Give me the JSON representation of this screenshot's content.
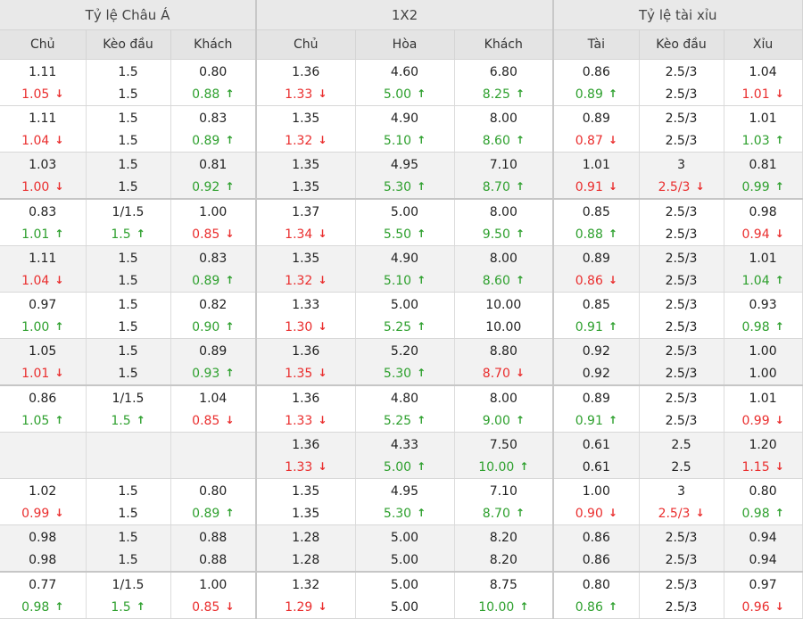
{
  "headers": {
    "groups": [
      "Tỷ lệ Châu Á",
      "1X2",
      "Tỷ lệ tài xỉu"
    ],
    "columns": [
      "Chủ",
      "Kèo đầu",
      "Khách",
      "Chủ",
      "Hòa",
      "Khách",
      "Tài",
      "Kèo đầu",
      "Xỉu"
    ]
  },
  "colors": {
    "up": "#2ea02e",
    "down": "#ea2e2e",
    "header_bg": "#e9e9e9",
    "shade_bg": "#f2f2f2"
  },
  "icons": {
    "up": "arrow-up-icon",
    "down": "arrow-down-icon"
  },
  "arrows": {
    "up": "↑",
    "down": "↓"
  },
  "rows": [
    {
      "shade": false,
      "thick": false,
      "open": [
        [
          "1.11",
          ""
        ],
        [
          "1.5",
          ""
        ],
        [
          "0.80",
          ""
        ],
        [
          "1.36",
          ""
        ],
        [
          "4.60",
          ""
        ],
        [
          "6.80",
          ""
        ],
        [
          "0.86",
          ""
        ],
        [
          "2.5/3",
          ""
        ],
        [
          "1.04",
          ""
        ]
      ],
      "close": [
        [
          "1.05",
          "down"
        ],
        [
          "1.5",
          ""
        ],
        [
          "0.88",
          "up"
        ],
        [
          "1.33",
          "down"
        ],
        [
          "5.00",
          "up"
        ],
        [
          "8.25",
          "up"
        ],
        [
          "0.89",
          "up"
        ],
        [
          "2.5/3",
          ""
        ],
        [
          "1.01",
          "down"
        ]
      ]
    },
    {
      "shade": false,
      "thick": false,
      "open": [
        [
          "1.11",
          ""
        ],
        [
          "1.5",
          ""
        ],
        [
          "0.83",
          ""
        ],
        [
          "1.35",
          ""
        ],
        [
          "4.90",
          ""
        ],
        [
          "8.00",
          ""
        ],
        [
          "0.89",
          ""
        ],
        [
          "2.5/3",
          ""
        ],
        [
          "1.01",
          ""
        ]
      ],
      "close": [
        [
          "1.04",
          "down"
        ],
        [
          "1.5",
          ""
        ],
        [
          "0.89",
          "up"
        ],
        [
          "1.32",
          "down"
        ],
        [
          "5.10",
          "up"
        ],
        [
          "8.60",
          "up"
        ],
        [
          "0.87",
          "down"
        ],
        [
          "2.5/3",
          ""
        ],
        [
          "1.03",
          "up"
        ]
      ]
    },
    {
      "shade": true,
      "thick": true,
      "open": [
        [
          "1.03",
          ""
        ],
        [
          "1.5",
          ""
        ],
        [
          "0.81",
          ""
        ],
        [
          "1.35",
          ""
        ],
        [
          "4.95",
          ""
        ],
        [
          "7.10",
          ""
        ],
        [
          "1.01",
          ""
        ],
        [
          "3",
          ""
        ],
        [
          "0.81",
          ""
        ]
      ],
      "close": [
        [
          "1.00",
          "down"
        ],
        [
          "1.5",
          ""
        ],
        [
          "0.92",
          "up"
        ],
        [
          "1.35",
          ""
        ],
        [
          "5.30",
          "up"
        ],
        [
          "8.70",
          "up"
        ],
        [
          "0.91",
          "down"
        ],
        [
          "2.5/3",
          "down"
        ],
        [
          "0.99",
          "up"
        ]
      ]
    },
    {
      "shade": false,
      "thick": false,
      "open": [
        [
          "0.83",
          ""
        ],
        [
          "1/1.5",
          ""
        ],
        [
          "1.00",
          ""
        ],
        [
          "1.37",
          ""
        ],
        [
          "5.00",
          ""
        ],
        [
          "8.00",
          ""
        ],
        [
          "0.85",
          ""
        ],
        [
          "2.5/3",
          ""
        ],
        [
          "0.98",
          ""
        ]
      ],
      "close": [
        [
          "1.01",
          "up"
        ],
        [
          "1.5",
          "up"
        ],
        [
          "0.85",
          "down"
        ],
        [
          "1.34",
          "down"
        ],
        [
          "5.50",
          "up"
        ],
        [
          "9.50",
          "up"
        ],
        [
          "0.88",
          "up"
        ],
        [
          "2.5/3",
          ""
        ],
        [
          "0.94",
          "down"
        ]
      ]
    },
    {
      "shade": true,
      "thick": false,
      "open": [
        [
          "1.11",
          ""
        ],
        [
          "1.5",
          ""
        ],
        [
          "0.83",
          ""
        ],
        [
          "1.35",
          ""
        ],
        [
          "4.90",
          ""
        ],
        [
          "8.00",
          ""
        ],
        [
          "0.89",
          ""
        ],
        [
          "2.5/3",
          ""
        ],
        [
          "1.01",
          ""
        ]
      ],
      "close": [
        [
          "1.04",
          "down"
        ],
        [
          "1.5",
          ""
        ],
        [
          "0.89",
          "up"
        ],
        [
          "1.32",
          "down"
        ],
        [
          "5.10",
          "up"
        ],
        [
          "8.60",
          "up"
        ],
        [
          "0.86",
          "down"
        ],
        [
          "2.5/3",
          ""
        ],
        [
          "1.04",
          "up"
        ]
      ]
    },
    {
      "shade": false,
      "thick": false,
      "open": [
        [
          "0.97",
          ""
        ],
        [
          "1.5",
          ""
        ],
        [
          "0.82",
          ""
        ],
        [
          "1.33",
          ""
        ],
        [
          "5.00",
          ""
        ],
        [
          "10.00",
          ""
        ],
        [
          "0.85",
          ""
        ],
        [
          "2.5/3",
          ""
        ],
        [
          "0.93",
          ""
        ]
      ],
      "close": [
        [
          "1.00",
          "up"
        ],
        [
          "1.5",
          ""
        ],
        [
          "0.90",
          "up"
        ],
        [
          "1.30",
          "down"
        ],
        [
          "5.25",
          "up"
        ],
        [
          "10.00",
          ""
        ],
        [
          "0.91",
          "up"
        ],
        [
          "2.5/3",
          ""
        ],
        [
          "0.98",
          "up"
        ]
      ]
    },
    {
      "shade": true,
      "thick": true,
      "open": [
        [
          "1.05",
          ""
        ],
        [
          "1.5",
          ""
        ],
        [
          "0.89",
          ""
        ],
        [
          "1.36",
          ""
        ],
        [
          "5.20",
          ""
        ],
        [
          "8.80",
          ""
        ],
        [
          "0.92",
          ""
        ],
        [
          "2.5/3",
          ""
        ],
        [
          "1.00",
          ""
        ]
      ],
      "close": [
        [
          "1.01",
          "down"
        ],
        [
          "1.5",
          ""
        ],
        [
          "0.93",
          "up"
        ],
        [
          "1.35",
          "down"
        ],
        [
          "5.30",
          "up"
        ],
        [
          "8.70",
          "down"
        ],
        [
          "0.92",
          ""
        ],
        [
          "2.5/3",
          ""
        ],
        [
          "1.00",
          ""
        ]
      ]
    },
    {
      "shade": false,
      "thick": false,
      "open": [
        [
          "0.86",
          ""
        ],
        [
          "1/1.5",
          ""
        ],
        [
          "1.04",
          ""
        ],
        [
          "1.36",
          ""
        ],
        [
          "4.80",
          ""
        ],
        [
          "8.00",
          ""
        ],
        [
          "0.89",
          ""
        ],
        [
          "2.5/3",
          ""
        ],
        [
          "1.01",
          ""
        ]
      ],
      "close": [
        [
          "1.05",
          "up"
        ],
        [
          "1.5",
          "up"
        ],
        [
          "0.85",
          "down"
        ],
        [
          "1.33",
          "down"
        ],
        [
          "5.25",
          "up"
        ],
        [
          "9.00",
          "up"
        ],
        [
          "0.91",
          "up"
        ],
        [
          "2.5/3",
          ""
        ],
        [
          "0.99",
          "down"
        ]
      ]
    },
    {
      "shade": true,
      "thick": false,
      "open": [
        [
          "",
          ""
        ],
        [
          "",
          ""
        ],
        [
          "",
          ""
        ],
        [
          "1.36",
          ""
        ],
        [
          "4.33",
          ""
        ],
        [
          "7.50",
          ""
        ],
        [
          "0.61",
          ""
        ],
        [
          "2.5",
          ""
        ],
        [
          "1.20",
          ""
        ]
      ],
      "close": [
        [
          "",
          ""
        ],
        [
          "",
          ""
        ],
        [
          "",
          ""
        ],
        [
          "1.33",
          "down"
        ],
        [
          "5.00",
          "up"
        ],
        [
          "10.00",
          "up"
        ],
        [
          "0.61",
          ""
        ],
        [
          "2.5",
          ""
        ],
        [
          "1.15",
          "down"
        ]
      ]
    },
    {
      "shade": false,
      "thick": false,
      "open": [
        [
          "1.02",
          ""
        ],
        [
          "1.5",
          ""
        ],
        [
          "0.80",
          ""
        ],
        [
          "1.35",
          ""
        ],
        [
          "4.95",
          ""
        ],
        [
          "7.10",
          ""
        ],
        [
          "1.00",
          ""
        ],
        [
          "3",
          ""
        ],
        [
          "0.80",
          ""
        ]
      ],
      "close": [
        [
          "0.99",
          "down"
        ],
        [
          "1.5",
          ""
        ],
        [
          "0.89",
          "up"
        ],
        [
          "1.35",
          ""
        ],
        [
          "5.30",
          "up"
        ],
        [
          "8.70",
          "up"
        ],
        [
          "0.90",
          "down"
        ],
        [
          "2.5/3",
          "down"
        ],
        [
          "0.98",
          "up"
        ]
      ]
    },
    {
      "shade": true,
      "thick": true,
      "open": [
        [
          "0.98",
          ""
        ],
        [
          "1.5",
          ""
        ],
        [
          "0.88",
          ""
        ],
        [
          "1.28",
          ""
        ],
        [
          "5.00",
          ""
        ],
        [
          "8.20",
          ""
        ],
        [
          "0.86",
          ""
        ],
        [
          "2.5/3",
          ""
        ],
        [
          "0.94",
          ""
        ]
      ],
      "close": [
        [
          "0.98",
          ""
        ],
        [
          "1.5",
          ""
        ],
        [
          "0.88",
          ""
        ],
        [
          "1.28",
          ""
        ],
        [
          "5.00",
          ""
        ],
        [
          "8.20",
          ""
        ],
        [
          "0.86",
          ""
        ],
        [
          "2.5/3",
          ""
        ],
        [
          "0.94",
          ""
        ]
      ]
    },
    {
      "shade": false,
      "thick": false,
      "open": [
        [
          "0.77",
          ""
        ],
        [
          "1/1.5",
          ""
        ],
        [
          "1.00",
          ""
        ],
        [
          "1.32",
          ""
        ],
        [
          "5.00",
          ""
        ],
        [
          "8.75",
          ""
        ],
        [
          "0.80",
          ""
        ],
        [
          "2.5/3",
          ""
        ],
        [
          "0.97",
          ""
        ]
      ],
      "close": [
        [
          "0.98",
          "up"
        ],
        [
          "1.5",
          "up"
        ],
        [
          "0.85",
          "down"
        ],
        [
          "1.29",
          "down"
        ],
        [
          "5.00",
          ""
        ],
        [
          "10.00",
          "up"
        ],
        [
          "0.86",
          "up"
        ],
        [
          "2.5/3",
          ""
        ],
        [
          "0.96",
          "down"
        ]
      ]
    }
  ]
}
